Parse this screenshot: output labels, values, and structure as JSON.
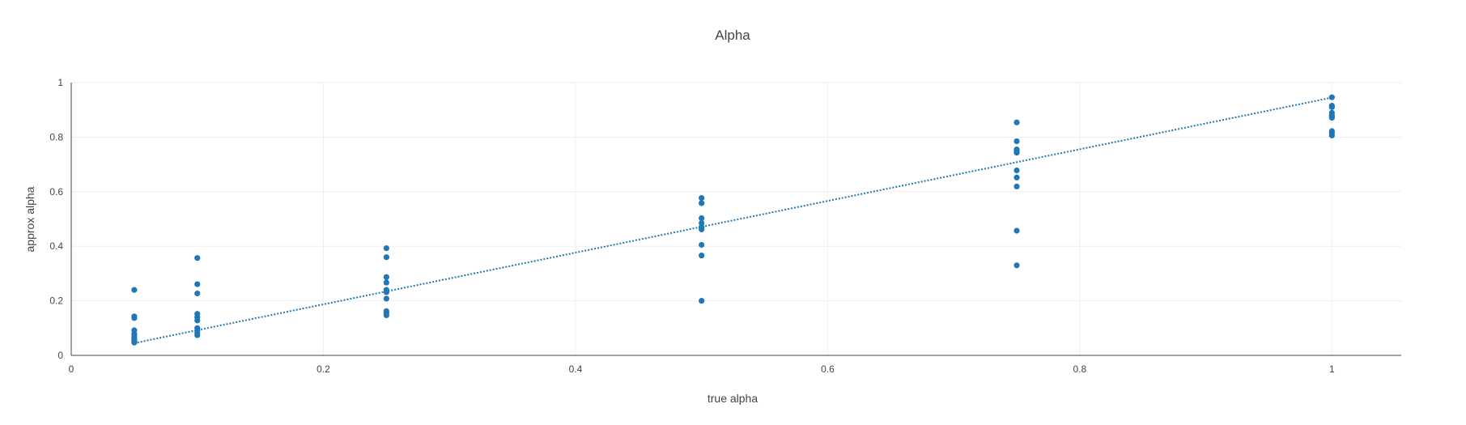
{
  "chart_data": {
    "type": "scatter",
    "title": "Alpha",
    "xlabel": "true alpha",
    "ylabel": "approx alpha",
    "xlim": [
      0,
      1.055
    ],
    "ylim": [
      0,
      1
    ],
    "xticks": [
      0,
      0.2,
      0.4,
      0.6,
      0.8,
      1
    ],
    "xtick_labels": [
      "0",
      "0.2",
      "0.4",
      "0.6",
      "0.8",
      "1"
    ],
    "yticks": [
      0,
      0.2,
      0.4,
      0.6,
      0.8,
      1
    ],
    "ytick_labels": [
      "0",
      "0.2",
      "0.4",
      "0.6",
      "0.8",
      "1"
    ],
    "grid": true,
    "color": "#1f77b4",
    "series": [
      {
        "mode": "markers",
        "x": [
          0.05,
          0.05,
          0.05,
          0.05,
          0.05,
          0.05,
          0.05,
          0.05,
          0.05,
          0.05,
          0.1,
          0.1,
          0.1,
          0.1,
          0.1,
          0.1,
          0.1,
          0.1,
          0.1,
          0.1,
          0.25,
          0.25,
          0.25,
          0.25,
          0.25,
          0.25,
          0.25,
          0.25,
          0.25,
          0.25,
          0.5,
          0.5,
          0.5,
          0.5,
          0.5,
          0.5,
          0.5,
          0.5,
          0.5,
          0.5,
          0.75,
          0.75,
          0.75,
          0.75,
          0.75,
          0.75,
          0.75,
          0.75,
          0.75,
          0.75,
          1,
          1,
          1,
          1,
          1,
          1,
          1,
          1,
          1,
          1
        ],
        "y": [
          0.24,
          0.143,
          0.137,
          0.092,
          0.078,
          0.069,
          0.062,
          0.058,
          0.052,
          0.047,
          0.357,
          0.261,
          0.227,
          0.152,
          0.14,
          0.128,
          0.1,
          0.09,
          0.083,
          0.074,
          0.393,
          0.36,
          0.287,
          0.267,
          0.24,
          0.232,
          0.208,
          0.162,
          0.155,
          0.147,
          0.577,
          0.558,
          0.503,
          0.485,
          0.47,
          0.462,
          0.405,
          0.366,
          0.2,
          0.47,
          0.854,
          0.785,
          0.755,
          0.743,
          0.678,
          0.652,
          0.619,
          0.457,
          0.33,
          0.748,
          0.946,
          0.915,
          0.889,
          0.877,
          0.871,
          0.822,
          0.815,
          0.806,
          0.88,
          0.91
        ]
      },
      {
        "mode": "line-dotted",
        "x": [
          0.05,
          1
        ],
        "y": [
          0.045,
          0.945
        ]
      }
    ]
  }
}
